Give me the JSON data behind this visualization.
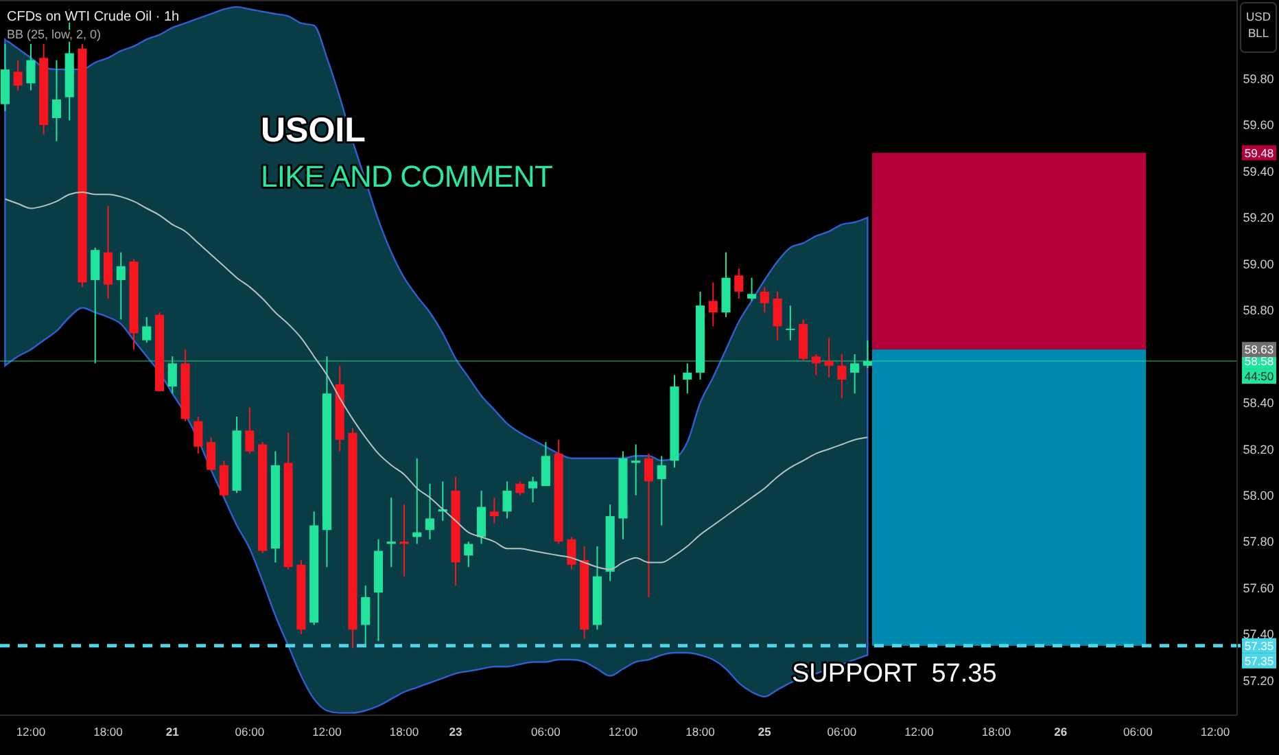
{
  "chart_data": {
    "type": "candlestick",
    "title": "CFDs on WTI Crude Oil · 1h",
    "subtitle": "BB (25, low, 2, 0)",
    "ylabel": "USD BLL",
    "categories": [
      null,
      null,
      "12:00",
      null,
      null,
      null,
      null,
      null,
      "18:00",
      null,
      null,
      null,
      null,
      "21",
      null,
      null,
      null,
      null,
      null,
      "06:00",
      null,
      null,
      null,
      null,
      null,
      "12:00",
      null,
      null,
      null,
      null,
      null,
      "18:00",
      null,
      null,
      null,
      "23",
      null,
      null,
      null,
      null,
      null,
      null,
      "06:00",
      null,
      null,
      null,
      null,
      null,
      "12:00",
      null,
      null,
      null,
      null,
      null,
      "18:00",
      null,
      null,
      null,
      null,
      "25",
      null,
      null,
      null,
      null,
      null,
      "06:00",
      null,
      null,
      null,
      null,
      null,
      "12:00",
      null,
      null,
      null,
      null,
      null,
      "18:00",
      null,
      null,
      null,
      null,
      "26",
      null,
      null,
      null,
      null,
      null,
      "06:00",
      null,
      null,
      null,
      null,
      null,
      "12:00",
      null
    ],
    "ohlc": [
      [
        59.69,
        59.95,
        59.66,
        59.84
      ],
      [
        59.83,
        59.88,
        59.75,
        59.77
      ],
      [
        59.78,
        59.95,
        59.75,
        59.88
      ],
      [
        59.89,
        59.95,
        59.56,
        59.6
      ],
      [
        59.63,
        59.88,
        59.53,
        59.71
      ],
      [
        59.72,
        60.1,
        59.62,
        59.91
      ],
      [
        59.93,
        59.95,
        58.9,
        58.92
      ],
      [
        58.93,
        59.07,
        58.57,
        59.06
      ],
      [
        59.05,
        59.25,
        58.85,
        58.91
      ],
      [
        58.93,
        59.05,
        58.76,
        58.99
      ],
      [
        59.01,
        59.02,
        58.63,
        58.7
      ],
      [
        58.67,
        58.77,
        58.66,
        58.73
      ],
      [
        58.78,
        58.79,
        58.45,
        58.45
      ],
      [
        58.47,
        58.6,
        58.44,
        58.57
      ],
      [
        58.57,
        58.63,
        58.32,
        58.33
      ],
      [
        58.32,
        58.34,
        58.18,
        58.21
      ],
      [
        58.23,
        58.25,
        58.11,
        58.11
      ],
      [
        58.13,
        58.15,
        57.99,
        58.0
      ],
      [
        58.02,
        58.34,
        58.01,
        58.28
      ],
      [
        58.28,
        58.38,
        58.18,
        58.19
      ],
      [
        58.22,
        58.23,
        57.75,
        57.76
      ],
      [
        57.77,
        58.19,
        57.71,
        58.13
      ],
      [
        58.14,
        58.27,
        57.68,
        57.69
      ],
      [
        57.7,
        57.72,
        57.4,
        57.42
      ],
      [
        57.45,
        57.93,
        57.44,
        57.87
      ],
      [
        57.85,
        58.6,
        57.69,
        58.44
      ],
      [
        58.48,
        58.56,
        58.19,
        58.24
      ],
      [
        58.27,
        58.29,
        57.34,
        57.42
      ],
      [
        57.44,
        57.61,
        57.35,
        57.56
      ],
      [
        57.58,
        57.81,
        57.37,
        57.76
      ],
      [
        57.79,
        57.99,
        57.69,
        57.8
      ],
      [
        57.8,
        57.96,
        57.65,
        57.79
      ],
      [
        57.82,
        58.16,
        57.79,
        57.84
      ],
      [
        57.85,
        58.05,
        57.81,
        57.9
      ],
      [
        57.93,
        58.06,
        57.89,
        57.94
      ],
      [
        58.02,
        58.08,
        57.61,
        57.71
      ],
      [
        57.74,
        57.8,
        57.69,
        57.79
      ],
      [
        57.82,
        58.02,
        57.79,
        57.95
      ],
      [
        57.93,
        57.99,
        57.88,
        57.91
      ],
      [
        57.93,
        58.06,
        57.9,
        58.02
      ],
      [
        58.05,
        58.06,
        58.0,
        58.01
      ],
      [
        58.03,
        58.08,
        57.97,
        58.06
      ],
      [
        58.04,
        58.23,
        58.04,
        58.17
      ],
      [
        58.18,
        58.24,
        57.79,
        57.8
      ],
      [
        57.81,
        57.82,
        57.68,
        57.7
      ],
      [
        57.72,
        57.78,
        57.38,
        57.42
      ],
      [
        57.44,
        57.78,
        57.42,
        57.65
      ],
      [
        57.67,
        57.96,
        57.63,
        57.91
      ],
      [
        57.9,
        58.19,
        57.81,
        58.16
      ],
      [
        58.14,
        58.22,
        58.0,
        58.15
      ],
      [
        58.16,
        58.18,
        57.56,
        58.06
      ],
      [
        58.07,
        58.17,
        57.87,
        58.13
      ],
      [
        58.15,
        58.52,
        58.12,
        58.47
      ],
      [
        58.5,
        58.57,
        58.44,
        58.53
      ],
      [
        58.53,
        58.88,
        58.5,
        58.82
      ],
      [
        58.84,
        58.92,
        58.73,
        58.79
      ],
      [
        58.79,
        59.05,
        58.77,
        58.94
      ],
      [
        58.95,
        58.98,
        58.85,
        58.88
      ],
      [
        58.85,
        58.94,
        58.84,
        58.87
      ],
      [
        58.88,
        58.9,
        58.79,
        58.83
      ],
      [
        58.85,
        58.88,
        58.67,
        58.73
      ],
      [
        58.72,
        58.82,
        58.67,
        58.72
      ],
      [
        58.74,
        58.76,
        58.58,
        58.59
      ],
      [
        58.6,
        58.61,
        58.52,
        58.57
      ],
      [
        58.58,
        58.68,
        58.51,
        58.56
      ],
      [
        58.56,
        58.61,
        58.42,
        58.5
      ],
      [
        58.53,
        58.61,
        58.44,
        58.57
      ],
      [
        58.56,
        58.67,
        58.55,
        58.58
      ],
      null,
      null,
      null,
      null,
      null,
      null,
      null,
      null,
      null,
      null,
      null,
      null,
      null,
      null,
      null,
      null,
      null,
      null,
      null,
      null,
      null,
      null,
      null,
      null,
      null,
      null,
      null,
      null
    ],
    "colors": [
      "#22e39b",
      "#f7151f",
      "#22e39b",
      "#f7151f",
      "#22e39b",
      "#22e39b",
      "#f7151f",
      "#22e39b",
      "#f7151f",
      "#22e39b",
      "#f7151f",
      "#22e39b",
      "#f7151f",
      "#22e39b",
      "#f7151f",
      "#f7151f",
      "#f7151f",
      "#f7151f",
      "#22e39b",
      "#f7151f",
      "#f7151f",
      "#22e39b",
      "#f7151f",
      "#f7151f",
      "#22e39b",
      "#22e39b",
      "#f7151f",
      "#f7151f",
      "#22e39b",
      "#22e39b",
      "#22e39b",
      "#f7151f",
      "#22e39b",
      "#22e39b",
      "#22e39b",
      "#f7151f",
      "#22e39b",
      "#22e39b",
      "#f7151f",
      "#22e39b",
      "#f7151f",
      "#22e39b",
      "#22e39b",
      "#f7151f",
      "#f7151f",
      "#f7151f",
      "#22e39b",
      "#22e39b",
      "#22e39b",
      "#22e39b",
      "#f7151f",
      "#22e39b",
      "#22e39b",
      "#22e39b",
      "#22e39b",
      "#f7151f",
      "#22e39b",
      "#f7151f",
      "#22e39b",
      "#f7151f",
      "#f7151f",
      "#22e39b",
      "#f7151f",
      "#f7151f",
      "#f7151f",
      "#f7151f",
      "#22e39b",
      "#22e39b",
      null,
      null,
      null,
      null,
      null,
      null,
      null,
      null,
      null,
      null,
      null,
      null,
      null,
      null,
      null,
      null,
      null,
      null,
      null,
      null,
      null,
      null,
      null,
      null,
      null,
      null,
      null,
      null
    ],
    "series": [
      {
        "type": "line",
        "color": "#b5c2c2",
        "values": [
          59.28,
          59.26,
          59.24,
          59.25,
          59.27,
          59.3,
          59.31,
          59.3,
          59.3,
          59.29,
          59.27,
          59.24,
          59.21,
          59.17,
          59.14,
          59.09,
          59.04,
          58.99,
          58.94,
          58.9,
          58.85,
          58.79,
          58.74,
          58.68,
          58.6,
          58.52,
          58.42,
          58.33,
          58.25,
          58.18,
          58.13,
          58.09,
          58.03,
          57.99,
          57.94,
          57.89,
          57.84,
          57.82,
          57.8,
          57.77,
          57.77,
          57.76,
          57.75,
          57.74,
          57.73,
          57.71,
          57.69,
          57.68,
          57.71,
          57.73,
          57.71,
          57.71,
          57.74,
          57.78,
          57.83,
          57.87,
          57.91,
          57.95,
          57.99,
          58.03,
          58.08,
          58.12,
          58.15,
          58.18,
          58.2,
          58.22,
          58.24,
          58.25,
          null,
          null,
          null,
          null,
          null,
          null,
          null,
          null,
          null,
          null,
          null,
          null,
          null,
          null,
          null,
          null,
          null,
          null,
          null,
          null,
          null,
          null,
          null,
          null,
          null,
          null,
          null,
          null
        ],
        "upper": [
          59.97,
          59.93,
          59.89,
          59.85,
          59.84,
          59.84,
          59.84,
          59.87,
          59.89,
          59.92,
          59.94,
          59.97,
          59.99,
          60.02,
          60.04,
          60.06,
          60.08,
          60.1,
          60.11,
          60.1,
          60.09,
          60.08,
          60.07,
          60.04,
          60.03,
          59.89,
          59.72,
          59.53,
          59.36,
          59.19,
          59.05,
          58.94,
          58.86,
          58.79,
          58.7,
          58.59,
          58.51,
          58.43,
          58.37,
          58.31,
          58.27,
          58.24,
          58.21,
          58.18,
          58.16,
          58.16,
          58.16,
          58.16,
          58.16,
          58.17,
          58.17,
          58.15,
          58.16,
          58.23,
          58.4,
          58.51,
          58.63,
          58.75,
          58.84,
          58.93,
          59.01,
          59.07,
          59.09,
          59.12,
          59.14,
          59.17,
          59.18,
          59.2,
          null,
          null,
          null,
          null,
          null,
          null,
          null,
          null,
          null,
          null,
          null,
          null,
          null,
          null,
          null,
          null,
          null,
          null,
          null,
          null,
          null,
          null,
          null,
          null,
          null,
          null,
          null,
          null
        ],
        "lower": [
          58.56,
          58.6,
          58.63,
          58.67,
          58.71,
          58.77,
          58.81,
          58.79,
          58.77,
          58.74,
          58.67,
          58.6,
          58.53,
          58.44,
          58.35,
          58.24,
          58.11,
          57.99,
          57.87,
          57.77,
          57.63,
          57.48,
          57.35,
          57.22,
          57.12,
          57.07,
          57.06,
          57.06,
          57.07,
          57.09,
          57.12,
          57.15,
          57.17,
          57.19,
          57.21,
          57.23,
          57.24,
          57.25,
          57.26,
          57.26,
          57.27,
          57.28,
          57.28,
          57.29,
          57.29,
          57.28,
          57.25,
          57.22,
          57.25,
          57.28,
          57.29,
          57.31,
          57.32,
          57.32,
          57.31,
          57.29,
          57.25,
          57.19,
          57.15,
          57.13,
          57.16,
          57.19,
          57.21,
          57.23,
          57.25,
          57.27,
          57.29,
          57.31,
          null,
          null,
          null,
          null,
          null,
          null,
          null,
          null,
          null,
          null,
          null,
          null,
          null,
          null,
          null,
          null,
          null,
          null,
          null,
          null,
          null,
          null,
          null,
          null,
          null,
          null,
          null,
          null
        ]
      }
    ],
    "ylim": [
      57.05,
      60.14
    ],
    "yticks": [
      {
        "value": 57.2,
        "label": "57.20"
      },
      {
        "value": 57.4,
        "label": "57.40"
      },
      {
        "value": 57.6,
        "label": "57.60"
      },
      {
        "value": 57.8,
        "label": "57.80"
      },
      {
        "value": 58.0,
        "label": "58.00"
      },
      {
        "value": 58.2,
        "label": "58.20"
      },
      {
        "value": 58.4,
        "label": "58.40"
      },
      {
        "value": 58.8,
        "label": "58.80"
      },
      {
        "value": 59.0,
        "label": "59.00"
      },
      {
        "value": 59.2,
        "label": "59.20"
      },
      {
        "value": 59.4,
        "label": "59.40"
      },
      {
        "value": 59.6,
        "label": "59.60"
      },
      {
        "value": 59.8,
        "label": "59.80"
      }
    ],
    "ref_lines": [
      {
        "axis": "y",
        "value": 58.58,
        "label": "58.58",
        "color": "#22e39b",
        "line_style": "solid"
      },
      {
        "axis": "y",
        "value": 57.35,
        "label": "57.35",
        "color": "#4dd6ea",
        "line_style": "dashed"
      }
    ],
    "bands": [
      {
        "axis": "y",
        "from": 58.63,
        "to": 59.48,
        "color": "#b3003a"
      },
      {
        "axis": "y",
        "from": 57.35,
        "to": 58.63,
        "color": "#008ab0"
      }
    ],
    "annotations": [
      "USOIL",
      "LIKE AND COMMENT",
      "44:50",
      {
        "text": "57.35",
        "y": 57.35
      },
      {
        "text": "SUPPORT  57.35",
        "y": 57.35
      },
      "59.48",
      "58.63"
    ]
  }
}
